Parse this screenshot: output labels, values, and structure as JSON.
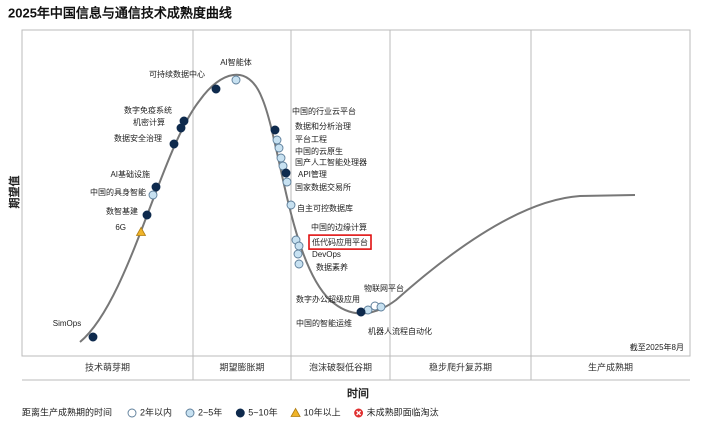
{
  "chart_data": {
    "type": "hype-cycle",
    "title": "2025年中国信息与通信技术成熟度曲线",
    "y_label": "期望值",
    "x_label": "时间",
    "note": "截至2025年8月",
    "phases": [
      "技术萌芽期",
      "期望膨胀期",
      "泡沫破裂低谷期",
      "稳步爬升复苏期",
      "生产成熟期"
    ],
    "legend_title": "距离生产成熟期的时间",
    "legend": [
      {
        "label": "2年以内",
        "color": "#ffffff"
      },
      {
        "label": "2~5年",
        "color": "#c7e1f1"
      },
      {
        "label": "5~10年",
        "color": "#0e2a4d"
      },
      {
        "label": "10年以上",
        "color": "#f0b429"
      },
      {
        "label": "未成熟即面临淘汰",
        "color": "#e03030"
      }
    ],
    "points": [
      {
        "label": "SimOps",
        "group": 2
      },
      {
        "label": "6G",
        "group": 3
      },
      {
        "label": "数智基建",
        "group": 2
      },
      {
        "label": "AI基础设施",
        "group": 2
      },
      {
        "label": "中国的具身智能",
        "group": 1
      },
      {
        "label": "数据安全治理",
        "group": 2
      },
      {
        "label": "机密计算",
        "group": 2
      },
      {
        "label": "数字免疫系统",
        "group": 2
      },
      {
        "label": "可持续数据中心",
        "group": 2
      },
      {
        "label": "AI智能体",
        "group": 1
      },
      {
        "label": "中国的行业云平台",
        "group": 2
      },
      {
        "label": "数据和分析治理",
        "group": 1
      },
      {
        "label": "平台工程",
        "group": 1
      },
      {
        "label": "中国的云原生",
        "group": 1
      },
      {
        "label": "国产人工智能处理器",
        "group": 1
      },
      {
        "label": "API管理",
        "group": 2
      },
      {
        "label": "国家数据交易所",
        "group": 1
      },
      {
        "label": "自主可控数据库",
        "group": 1
      },
      {
        "label": "中国的边缘计算",
        "group": 1
      },
      {
        "label": "低代码应用平台",
        "group": 1
      },
      {
        "label": "DevOps",
        "group": 1
      },
      {
        "label": "数据素养",
        "group": 1
      },
      {
        "label": "物联网平台",
        "group": 0
      },
      {
        "label": "数字办公超级应用",
        "group": 1
      },
      {
        "label": "中国的智能运维",
        "group": 2
      },
      {
        "label": "机器人流程自动化",
        "group": 1
      }
    ]
  }
}
